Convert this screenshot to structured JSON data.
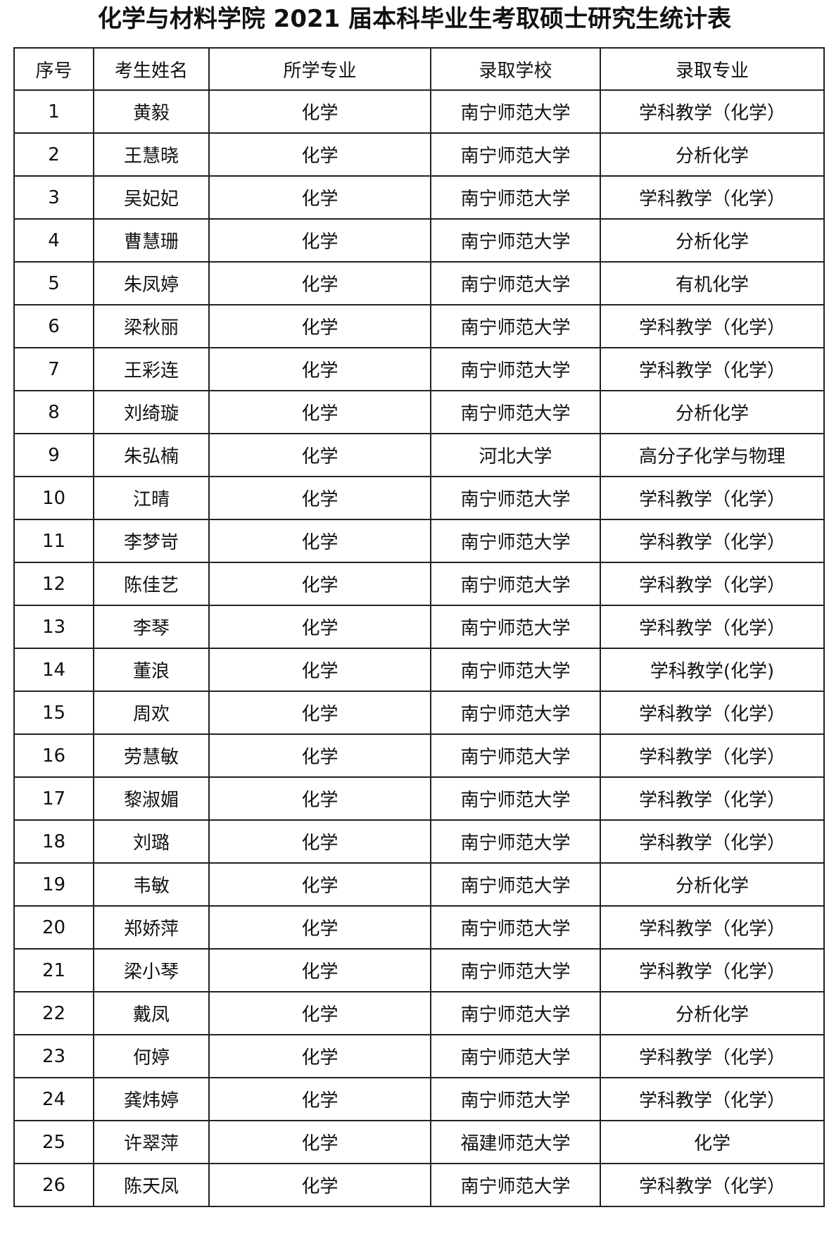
{
  "title": "化学与材料学院 2021 届本科毕业生考取硕士研究生统计表",
  "headers": [
    "序号",
    "考生姓名",
    "所学专业",
    "录取学校",
    "录取专业"
  ],
  "rows": [
    [
      "1",
      "黄毅",
      "化学",
      "南宁师范大学",
      "学科教学（化学）"
    ],
    [
      "2",
      "王慧晓",
      "化学",
      "南宁师范大学",
      "分析化学"
    ],
    [
      "3",
      "吴妃妃",
      "化学",
      "南宁师范大学",
      "学科教学（化学）"
    ],
    [
      "4",
      "曹慧珊",
      "化学",
      "南宁师范大学",
      "分析化学"
    ],
    [
      "5",
      "朱凤婷",
      "化学",
      "南宁师范大学",
      "有机化学"
    ],
    [
      "6",
      "梁秋丽",
      "化学",
      "南宁师范大学",
      "学科教学（化学）"
    ],
    [
      "7",
      "王彩连",
      "化学",
      "南宁师范大学",
      "学科教学（化学）"
    ],
    [
      "8",
      "刘绮璇",
      "化学",
      "南宁师范大学",
      "分析化学"
    ],
    [
      "9",
      "朱弘楠",
      "化学",
      "河北大学",
      "高分子化学与物理"
    ],
    [
      "10",
      "江晴",
      "化学",
      "南宁师范大学",
      "学科教学（化学）"
    ],
    [
      "11",
      "李梦岢",
      "化学",
      "南宁师范大学",
      "学科教学（化学）"
    ],
    [
      "12",
      "陈佳艺",
      "化学",
      "南宁师范大学",
      "学科教学（化学）"
    ],
    [
      "13",
      "李琴",
      "化学",
      "南宁师范大学",
      "学科教学（化学）"
    ],
    [
      "14",
      "董浪",
      "化学",
      "南宁师范大学",
      "学科教学(化学)"
    ],
    [
      "15",
      "周欢",
      "化学",
      "南宁师范大学",
      "学科教学（化学）"
    ],
    [
      "16",
      "劳慧敏",
      "化学",
      "南宁师范大学",
      "学科教学（化学）"
    ],
    [
      "17",
      "黎淑媚",
      "化学",
      "南宁师范大学",
      "学科教学（化学）"
    ],
    [
      "18",
      "刘璐",
      "化学",
      "南宁师范大学",
      "学科教学（化学）"
    ],
    [
      "19",
      "韦敏",
      "化学",
      "南宁师范大学",
      "分析化学"
    ],
    [
      "20",
      "郑娇萍",
      "化学",
      "南宁师范大学",
      "学科教学（化学）"
    ],
    [
      "21",
      "梁小琴",
      "化学",
      "南宁师范大学",
      "学科教学（化学）"
    ],
    [
      "22",
      "戴凤",
      "化学",
      "南宁师范大学",
      "分析化学"
    ],
    [
      "23",
      "何婷",
      "化学",
      "南宁师范大学",
      "学科教学（化学）"
    ],
    [
      "24",
      "龚炜婷",
      "化学",
      "南宁师范大学",
      "学科教学（化学）"
    ],
    [
      "25",
      "许翠萍",
      "化学",
      "福建师范大学",
      "化学"
    ],
    [
      "26",
      "陈天凤",
      "化学",
      "南宁师范大学",
      "学科教学（化学）"
    ]
  ]
}
